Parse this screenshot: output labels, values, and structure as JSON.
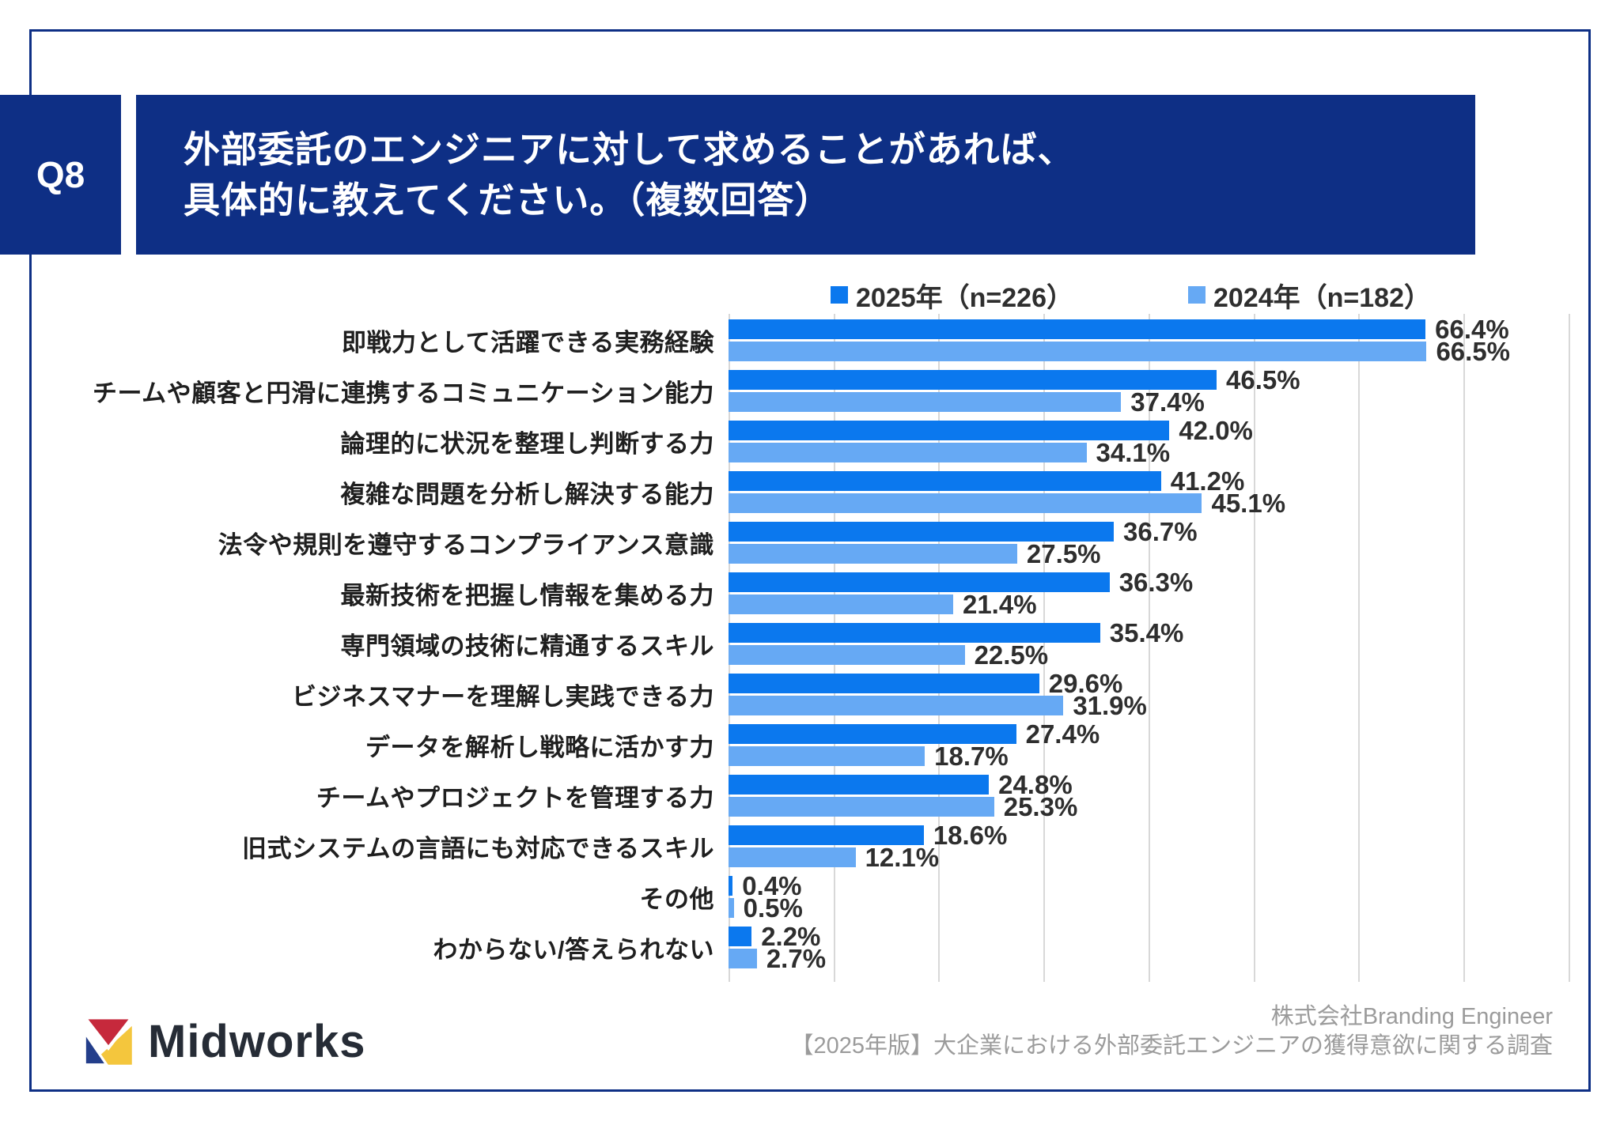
{
  "header": {
    "badge": "Q8",
    "title_line1": "外部委託のエンジニアに対して求めることがあれば、",
    "title_line2": "具体的に教えてください。（複数回答）"
  },
  "chart_data": {
    "type": "bar",
    "orientation": "horizontal",
    "categories": [
      "即戦力として活躍できる実務経験",
      "チームや顧客と円滑に連携するコミュニケーション能力",
      "論理的に状況を整理し判断する力",
      "複雑な問題を分析し解決する能力",
      "法令や規則を遵守するコンプライアンス意識",
      "最新技術を把握し情報を集める力",
      "専門領域の技術に精通するスキル",
      "ビジネスマナーを理解し実践できる力",
      "データを解析し戦略に活かす力",
      "チームやプロジェクトを管理する力",
      "旧式システムの言語にも対応できるスキル",
      "その他",
      "わからない/答えられない"
    ],
    "series": [
      {
        "name": "2025年（n=226）",
        "color": "#0b78ee",
        "values": [
          66.4,
          46.5,
          42.0,
          41.2,
          36.7,
          36.3,
          35.4,
          29.6,
          27.4,
          24.8,
          18.6,
          0.4,
          2.2
        ]
      },
      {
        "name": "2024年（n=182）",
        "color": "#66a9f4",
        "values": [
          66.5,
          37.4,
          34.1,
          45.1,
          27.5,
          21.4,
          22.5,
          31.9,
          18.7,
          25.3,
          12.1,
          0.5,
          2.7
        ]
      }
    ],
    "value_suffix": "%",
    "xlim": [
      0,
      80
    ],
    "gridline_step": 10,
    "grid": "on",
    "legend_position": "top"
  },
  "footer": {
    "logo_text": "Midworks",
    "credit_line1": "株式会社Branding Engineer",
    "credit_line2": "【2025年版】大企業における外部委託エンジニアの獲得意欲に関する調査"
  },
  "colors": {
    "band_navy": "#0e2f85",
    "grid": "#d8d8d8",
    "category_text": "#1f1f1f",
    "value_text": "#2e2e2e",
    "footer_text": "#9b9b9b",
    "logo_red": "#c6293c",
    "logo_navy": "#233e8b",
    "logo_yellow": "#f4c63d"
  }
}
